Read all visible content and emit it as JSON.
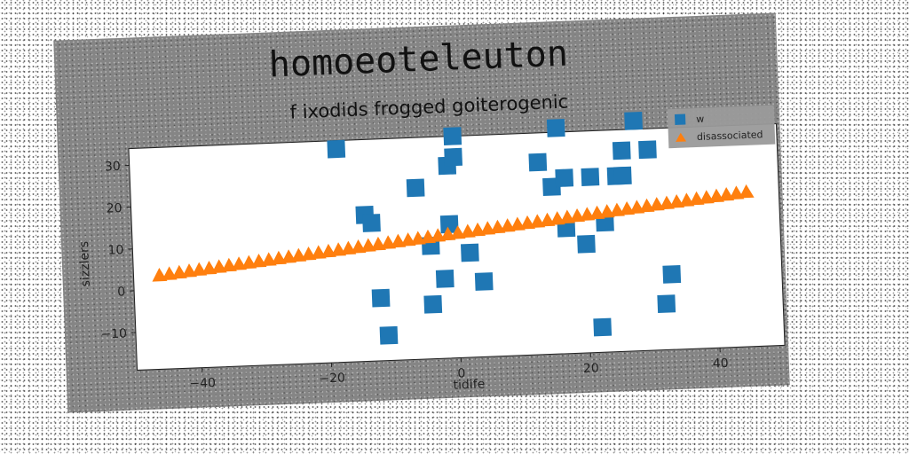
{
  "chart_data": {
    "type": "scatter",
    "title": "homoeoteleuton",
    "subtitle": "f ixodids frogged goiterogenic",
    "xlabel": "tidife",
    "ylabel": "sizzlers",
    "xlim": [
      -50,
      50
    ],
    "ylim": [
      -19,
      34
    ],
    "xticks": [
      -40,
      -20,
      0,
      20,
      40
    ],
    "yticks": [
      -10,
      0,
      10,
      20,
      30
    ],
    "grid": false,
    "legend_position": "top-right",
    "series": [
      {
        "name": "w",
        "marker": "square",
        "color": "#1f77b4",
        "points": [
          [
            -18,
            32
          ],
          [
            -14,
            16
          ],
          [
            -13,
            14
          ],
          [
            -12,
            -4
          ],
          [
            -11,
            -13
          ],
          [
            -6,
            22
          ],
          [
            -4,
            8
          ],
          [
            -4,
            -6
          ],
          [
            -2,
            0
          ],
          [
            -1,
            13
          ],
          [
            -1,
            27
          ],
          [
            0,
            34
          ],
          [
            0,
            29
          ],
          [
            2,
            6
          ],
          [
            4,
            -1
          ],
          [
            13,
            27
          ],
          [
            15,
            21
          ],
          [
            16,
            35
          ],
          [
            17,
            11
          ],
          [
            17,
            23
          ],
          [
            20,
            7
          ],
          [
            21,
            23
          ],
          [
            22,
            -13
          ],
          [
            23,
            12
          ],
          [
            25,
            23
          ],
          [
            26,
            23
          ],
          [
            26,
            29
          ],
          [
            28,
            36
          ],
          [
            30,
            29
          ],
          [
            32,
            -8
          ],
          [
            33,
            -1
          ]
        ]
      },
      {
        "name": "disassociated",
        "marker": "triangle",
        "color": "#ff7f0e",
        "x_start": -46,
        "x_end": 45,
        "count": 60,
        "slope": 0.16,
        "intercept": 11
      }
    ]
  }
}
